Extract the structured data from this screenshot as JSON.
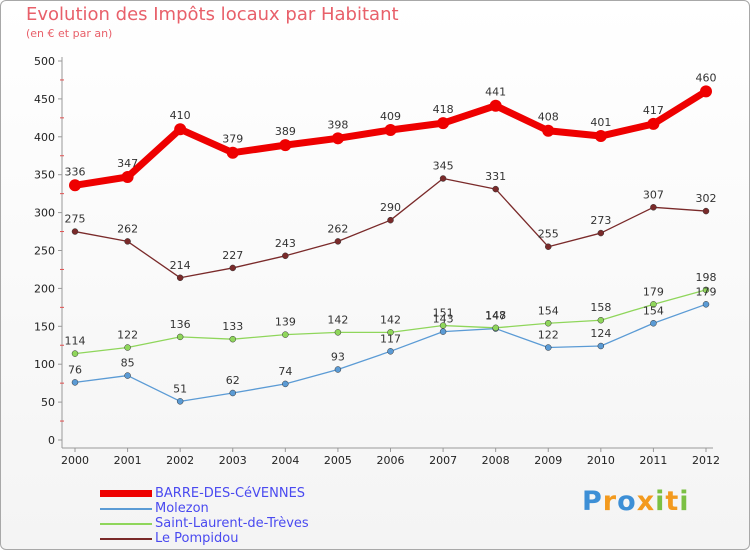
{
  "title": "Evolution des Impôts locaux par Habitant",
  "subtitle": "(en € et par an)",
  "logo": {
    "text": "Proxiti",
    "colors": [
      "#3d8fd6",
      "#f39a1e",
      "#3d8fd6",
      "#f39a1e",
      "#7bc043",
      "#f39a1e",
      "#7bc043"
    ]
  },
  "chart_data": {
    "type": "line",
    "title": "Evolution des Impôts locaux par Habitant",
    "subtitle": "(en € et par an)",
    "xlabel": "",
    "ylabel": "",
    "x": [
      "2000",
      "2001",
      "2002",
      "2003",
      "2004",
      "2005",
      "2006",
      "2007",
      "2008",
      "2009",
      "2010",
      "2011",
      "2012"
    ],
    "ylim": [
      0,
      500
    ],
    "yticks": [
      0,
      50,
      100,
      150,
      200,
      250,
      300,
      350,
      400,
      450,
      500
    ],
    "grid": false,
    "legend_position": "bottom-left",
    "series": [
      {
        "name": "BARRE-DES-CéVENNES",
        "color": "#ee0000",
        "values": [
          336,
          347,
          410,
          379,
          389,
          398,
          409,
          418,
          441,
          408,
          401,
          417,
          460
        ]
      },
      {
        "name": "Molezon",
        "color": "#5b9bd5",
        "values": [
          76,
          85,
          51,
          62,
          74,
          93,
          117,
          143,
          147,
          122,
          124,
          154,
          179
        ]
      },
      {
        "name": "Saint-Laurent-de-Trèves",
        "color": "#8fd65b",
        "values": [
          114,
          122,
          136,
          133,
          139,
          142,
          142,
          151,
          148,
          154,
          158,
          179,
          198
        ]
      },
      {
        "name": "Le Pompidou",
        "color": "#7a2a2a",
        "values": [
          275,
          262,
          214,
          227,
          243,
          262,
          290,
          345,
          331,
          255,
          273,
          307,
          302
        ]
      }
    ]
  }
}
